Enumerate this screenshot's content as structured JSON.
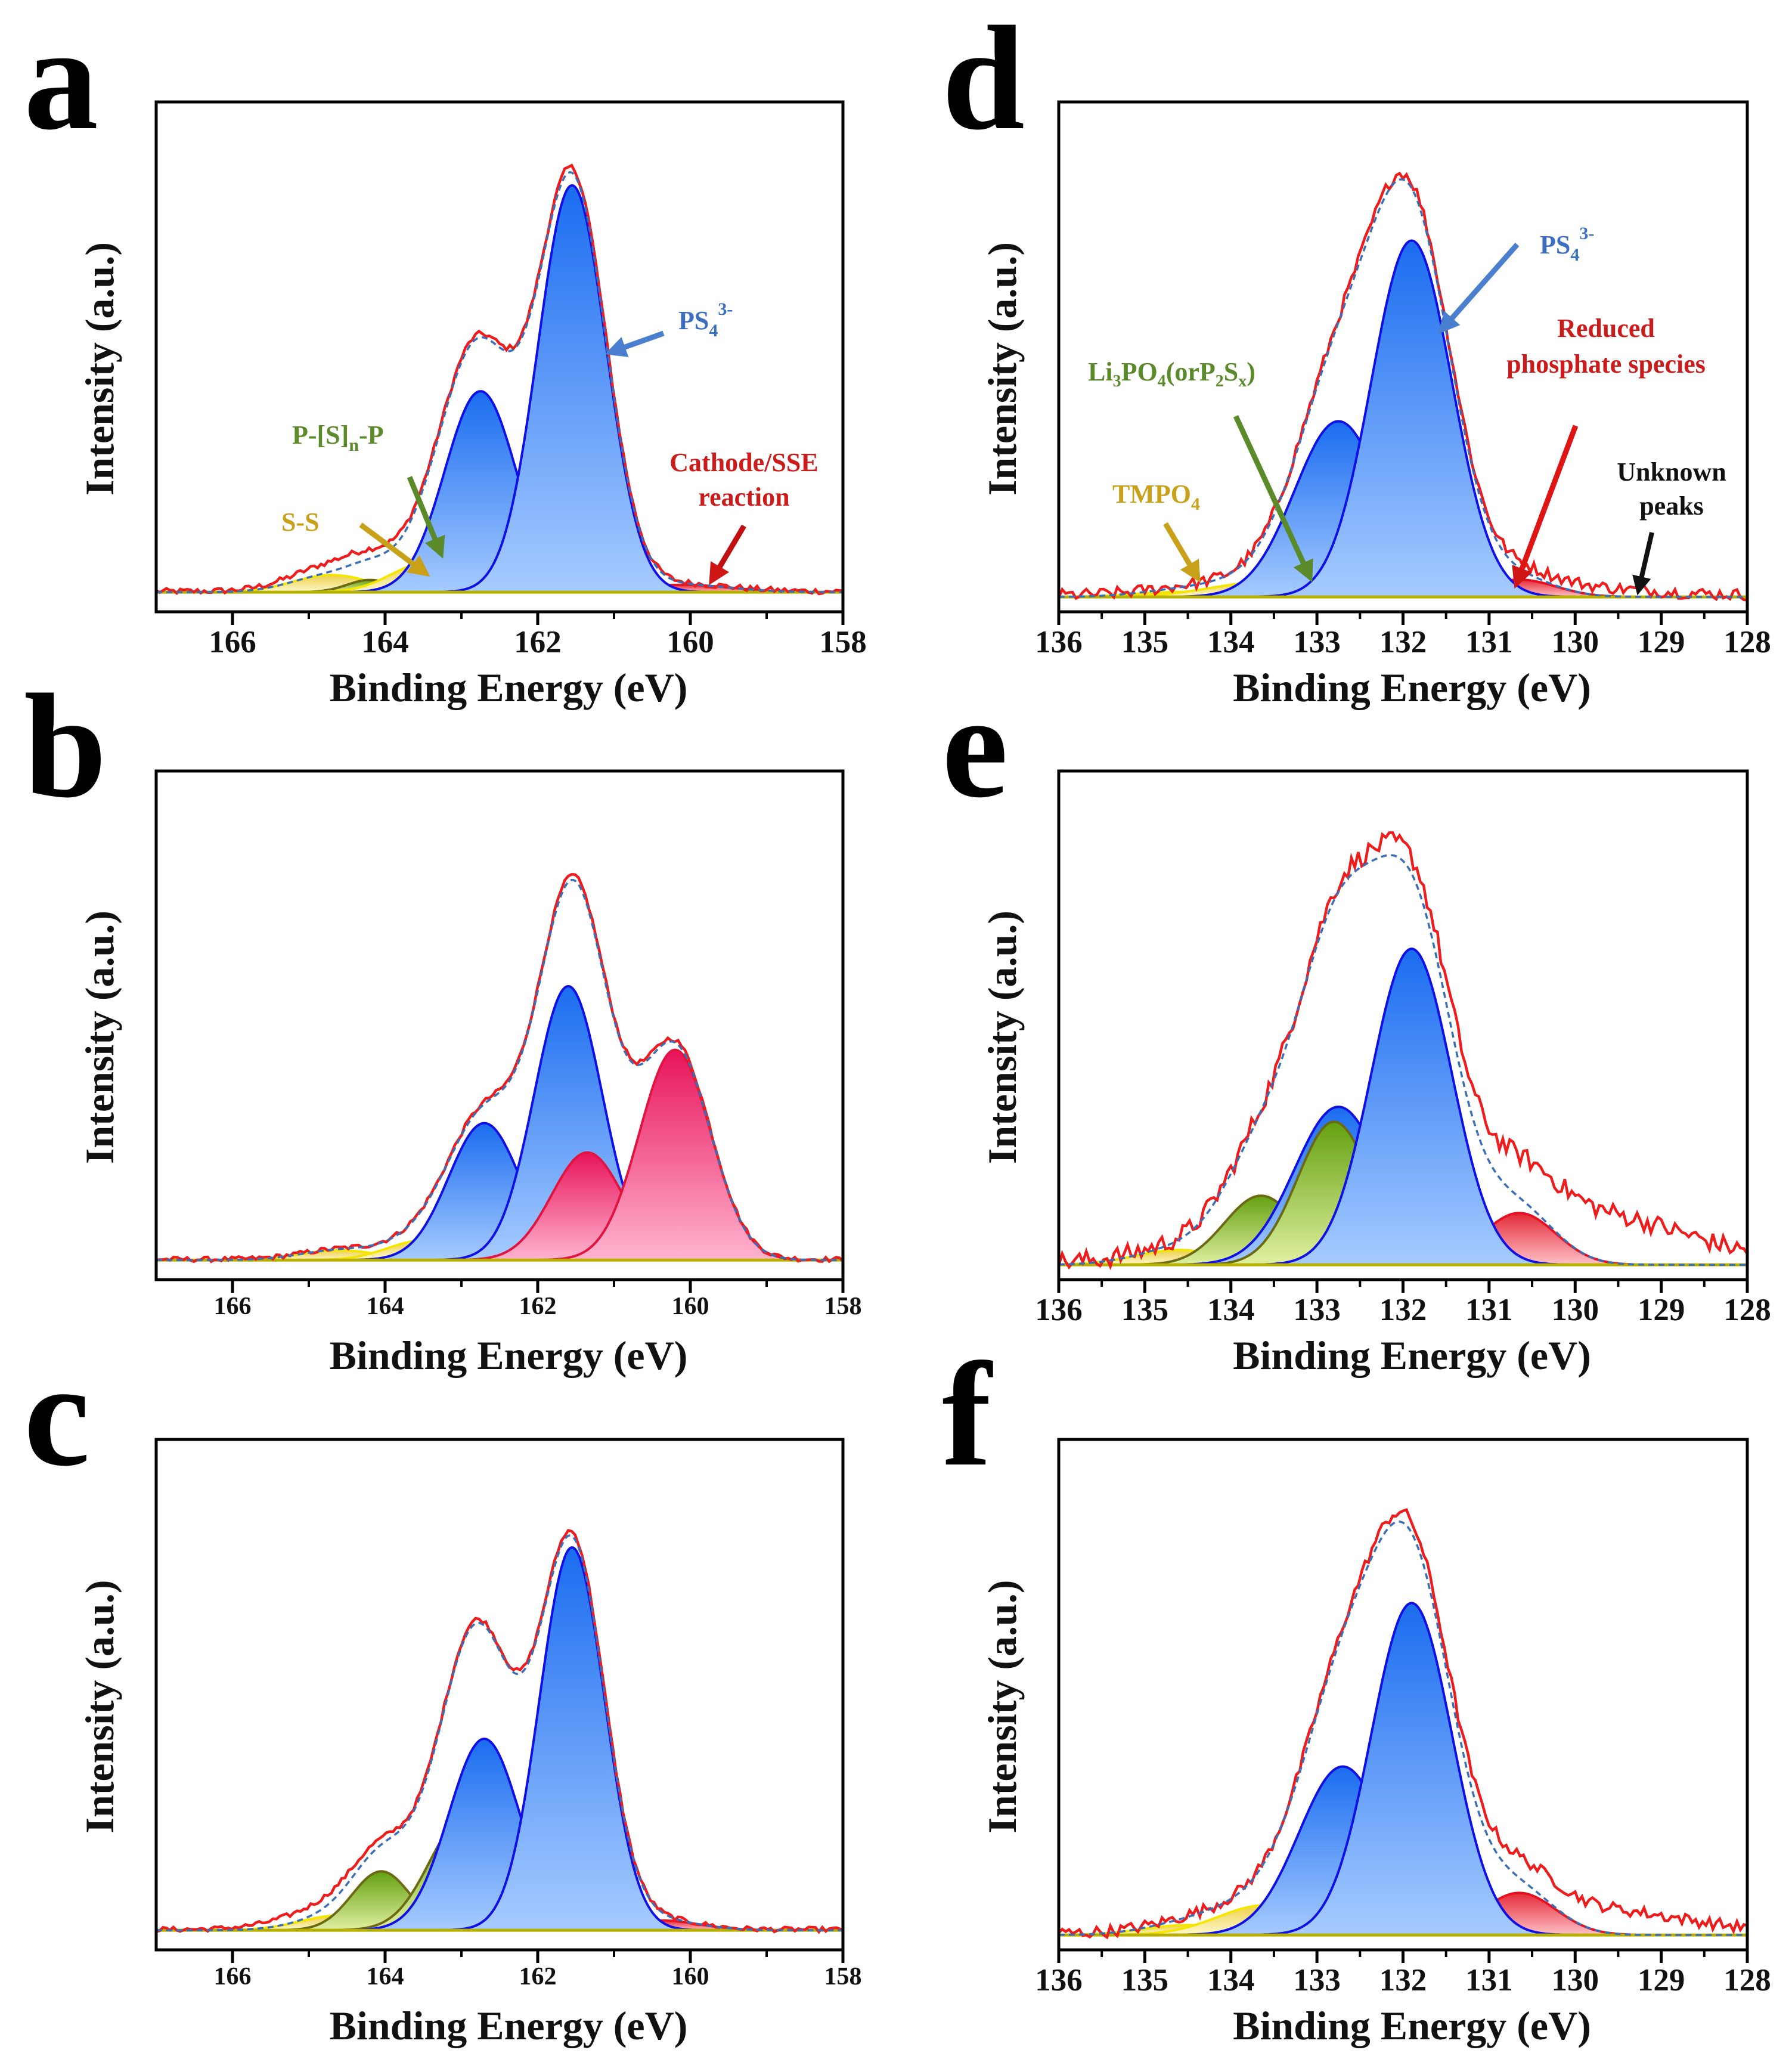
{
  "figure": {
    "panel_letters": [
      "a",
      "b",
      "c",
      "d",
      "e",
      "f"
    ],
    "annotations": {
      "a_ps4": {
        "base": "PS",
        "sub": "4",
        "sup": "3-"
      },
      "a_psnp": {
        "p1": "P-[S]",
        "sub": "n",
        "p2": "-P"
      },
      "a_ss": "S-S",
      "a_cathode_line1": "Cathode/SSE",
      "a_cathode_line2": "reaction",
      "d_ps4": {
        "base": "PS",
        "sub": "4",
        "sup": "3-"
      },
      "d_reduced_line1": "Reduced",
      "d_reduced_line2": "phosphate species",
      "d_unknown_line1": "Unknown",
      "d_unknown_line2": "peaks",
      "d_li3po4": {
        "p1": "Li",
        "s1": "3",
        "p2": "PO",
        "s2": "4",
        "p3": "(orP",
        "s3": "2",
        "p4": "S",
        "s4": "x",
        "p5": ")"
      },
      "d_tmpo4": {
        "base": "TMPO",
        "sub": "4"
      }
    },
    "colors": {
      "blue": "#2a78f2",
      "pink": "#ea1e62",
      "green": "#7aae18",
      "yellow": "#f2dc5a",
      "red": "#e8333c",
      "raw": "#ee1c1c",
      "fit": "#3a6fb8"
    }
  },
  "chart_data": [
    {
      "panel": "a",
      "type": "area",
      "xlabel": "Binding Energy (eV)",
      "ylabel": "Intensity (a.u.)",
      "xlim": [
        167,
        158
      ],
      "xticks": [
        166,
        164,
        162,
        160,
        158
      ],
      "ylim": [
        -0.04,
        1
      ],
      "noise": 0.006,
      "raw_extra": [
        {
          "center": 164.5,
          "amplitude": 0.02,
          "fwhm": 1.5
        }
      ],
      "components": [
        {
          "name": "S-S",
          "center": 164.7,
          "amplitude": 0.035,
          "fwhm": 1.2,
          "color": "yellow"
        },
        {
          "name": "P-[S]n-P",
          "center": 164.2,
          "amplitude": 0.025,
          "fwhm": 0.7,
          "color": "green"
        },
        {
          "name": "S-S",
          "center": 163.45,
          "amplitude": 0.06,
          "fwhm": 1.1,
          "color": "yellow"
        },
        {
          "name": "P-[S]n-P",
          "center": 162.95,
          "amplitude": 0.07,
          "fwhm": 1.1,
          "color": "green"
        },
        {
          "name": "Cathode/SSE reaction",
          "center": 161.9,
          "amplitude": 0.01,
          "fwhm": 1.5,
          "color": "red"
        },
        {
          "name": "Cathode/SSE reaction",
          "center": 160.1,
          "amplitude": 0.015,
          "fwhm": 1.5,
          "color": "red"
        },
        {
          "name": "PS4 3- (2p1/2)",
          "center": 162.75,
          "amplitude": 0.41,
          "fwhm": 1.1,
          "color": "blue"
        },
        {
          "name": "PS4 3- (2p3/2)",
          "center": 161.55,
          "amplitude": 0.83,
          "fwhm": 1.05,
          "color": "blue"
        }
      ]
    },
    {
      "panel": "b",
      "type": "area",
      "xlabel": "Binding Energy (eV)",
      "ylabel": "Intensity (a.u.)",
      "xlim": [
        167,
        158
      ],
      "xticks": [
        166,
        164,
        162,
        160,
        158
      ],
      "ylim": [
        -0.04,
        1
      ],
      "noise": 0.005,
      "raw_extra": [],
      "components": [
        {
          "name": "S-S",
          "center": 164.6,
          "amplitude": 0.02,
          "fwhm": 1.2,
          "color": "yellow"
        },
        {
          "name": "S-S",
          "center": 163.5,
          "amplitude": 0.04,
          "fwhm": 1.1,
          "color": "yellow"
        },
        {
          "name": "PS4 3- (2p1/2)",
          "center": 162.7,
          "amplitude": 0.28,
          "fwhm": 1.1,
          "color": "blue"
        },
        {
          "name": "PS4 3- (2p3/2)",
          "center": 161.6,
          "amplitude": 0.56,
          "fwhm": 1.05,
          "color": "blue"
        },
        {
          "name": "Cathode/SSE reaction",
          "center": 161.35,
          "amplitude": 0.22,
          "fwhm": 1.1,
          "color": "pink"
        },
        {
          "name": "Cathode/SSE reaction",
          "center": 160.2,
          "amplitude": 0.43,
          "fwhm": 1.1,
          "color": "pink"
        }
      ]
    },
    {
      "panel": "c",
      "type": "area",
      "xlabel": "Binding Energy (eV)",
      "ylabel": "Intensity (a.u.)",
      "xlim": [
        167,
        158
      ],
      "xticks": [
        166,
        164,
        162,
        160,
        158
      ],
      "ylim": [
        -0.04,
        1
      ],
      "noise": 0.005,
      "raw_extra": [
        {
          "center": 164.8,
          "amplitude": 0.02,
          "fwhm": 1.5
        }
      ],
      "components": [
        {
          "name": "S-S",
          "center": 164.6,
          "amplitude": 0.03,
          "fwhm": 1.2,
          "color": "yellow"
        },
        {
          "name": "S-S",
          "center": 163.45,
          "amplitude": 0.04,
          "fwhm": 1.1,
          "color": "yellow"
        },
        {
          "name": "P-[S]n-P",
          "center": 164.05,
          "amplitude": 0.12,
          "fwhm": 0.9,
          "color": "green"
        },
        {
          "name": "P-[S]n-P",
          "center": 162.95,
          "amplitude": 0.23,
          "fwhm": 1.1,
          "color": "green"
        },
        {
          "name": "Cathode/SSE reaction",
          "center": 160.4,
          "amplitude": 0.02,
          "fwhm": 1.2,
          "color": "red"
        },
        {
          "name": "PS4 3- (2p1/2)",
          "center": 162.7,
          "amplitude": 0.39,
          "fwhm": 1.1,
          "color": "blue"
        },
        {
          "name": "PS4 3- (2p3/2)",
          "center": 161.55,
          "amplitude": 0.78,
          "fwhm": 1.0,
          "color": "blue"
        }
      ]
    },
    {
      "panel": "d",
      "type": "area",
      "xlabel": "Binding Energy (eV)",
      "ylabel": "Intensity (a.u.)",
      "xlim": [
        136,
        128
      ],
      "xticks": [
        136,
        135,
        134,
        133,
        132,
        131,
        130,
        129,
        128
      ],
      "ylim": [
        -0.03,
        1
      ],
      "noise": 0.012,
      "raw_extra": [
        {
          "center": 130.0,
          "amplitude": 0.015,
          "fwhm": 2.0
        }
      ],
      "components": [
        {
          "name": "TMPO4",
          "center": 134.6,
          "amplitude": 0.01,
          "fwhm": 1.2,
          "color": "yellow"
        },
        {
          "name": "TMPO4",
          "center": 133.6,
          "amplitude": 0.03,
          "fwhm": 1.5,
          "color": "yellow"
        },
        {
          "name": "Li3PO4 (or P2Sx)",
          "center": 132.8,
          "amplitude": 0.05,
          "fwhm": 1.0,
          "color": "green"
        },
        {
          "name": "Reduced phosphate species",
          "center": 131.5,
          "amplitude": 0.015,
          "fwhm": 1.2,
          "color": "red"
        },
        {
          "name": "Reduced phosphate species",
          "center": 130.65,
          "amplitude": 0.035,
          "fwhm": 1.0,
          "color": "red"
        },
        {
          "name": "PS4 3- (2p1/2)",
          "center": 132.75,
          "amplitude": 0.355,
          "fwhm": 1.2,
          "color": "blue"
        },
        {
          "name": "PS4 3- (2p3/2)",
          "center": 131.9,
          "amplitude": 0.72,
          "fwhm": 1.1,
          "color": "blue"
        }
      ]
    },
    {
      "panel": "e",
      "type": "area",
      "xlabel": "Binding Energy (eV)",
      "ylabel": "Intensity (a.u.)",
      "xlim": [
        136,
        128
      ],
      "xticks": [
        136,
        135,
        134,
        133,
        132,
        131,
        130,
        129,
        128
      ],
      "ylim": [
        -0.03,
        1
      ],
      "noise": 0.02,
      "raw_extra": [
        {
          "center": 129.9,
          "amplitude": 0.1,
          "fwhm": 2.6
        }
      ],
      "components": [
        {
          "name": "TMPO4",
          "center": 134.6,
          "amplitude": 0.03,
          "fwhm": 1.2,
          "color": "yellow"
        },
        {
          "name": "TMPO4",
          "center": 133.7,
          "amplitude": 0.06,
          "fwhm": 1.1,
          "color": "yellow"
        },
        {
          "name": "Li3PO4 (or P2Sx)",
          "center": 133.65,
          "amplitude": 0.14,
          "fwhm": 1.0,
          "color": "green"
        },
        {
          "name": "Reduced phosphate species",
          "center": 131.5,
          "amplitude": 0.055,
          "fwhm": 1.2,
          "color": "red"
        },
        {
          "name": "Reduced phosphate species",
          "center": 130.65,
          "amplitude": 0.105,
          "fwhm": 1.0,
          "color": "red"
        },
        {
          "name": "PS4 3- (2p1/2)",
          "center": 132.75,
          "amplitude": 0.32,
          "fwhm": 1.2,
          "color": "blue"
        },
        {
          "name": "Li3PO4 (or P2Sx)",
          "center": 132.8,
          "amplitude": 0.29,
          "fwhm": 1.0,
          "color": "green"
        },
        {
          "name": "PS4 3- (2p3/2)",
          "center": 131.9,
          "amplitude": 0.64,
          "fwhm": 1.1,
          "color": "blue"
        }
      ]
    },
    {
      "panel": "f",
      "type": "area",
      "xlabel": "Binding Energy (eV)",
      "ylabel": "Intensity (a.u.)",
      "xlim": [
        136,
        128
      ],
      "xticks": [
        136,
        135,
        134,
        133,
        132,
        131,
        130,
        129,
        128
      ],
      "ylim": [
        -0.03,
        1
      ],
      "noise": 0.012,
      "raw_extra": [
        {
          "center": 129.9,
          "amplitude": 0.05,
          "fwhm": 2.6
        }
      ],
      "components": [
        {
          "name": "TMPO4",
          "center": 134.5,
          "amplitude": 0.02,
          "fwhm": 1.2,
          "color": "yellow"
        },
        {
          "name": "TMPO4",
          "center": 133.6,
          "amplitude": 0.06,
          "fwhm": 1.3,
          "color": "yellow"
        },
        {
          "name": "Li3PO4 (or P2Sx)",
          "center": 132.75,
          "amplitude": 0.1,
          "fwhm": 1.0,
          "color": "green"
        },
        {
          "name": "Reduced phosphate species",
          "center": 131.45,
          "amplitude": 0.04,
          "fwhm": 1.2,
          "color": "red"
        },
        {
          "name": "Reduced phosphate species",
          "center": 130.65,
          "amplitude": 0.085,
          "fwhm": 1.0,
          "color": "red"
        },
        {
          "name": "PS4 3- (2p1/2)",
          "center": 132.7,
          "amplitude": 0.34,
          "fwhm": 1.2,
          "color": "blue"
        },
        {
          "name": "PS4 3- (2p3/2)",
          "center": 131.9,
          "amplitude": 0.67,
          "fwhm": 1.1,
          "color": "blue"
        }
      ]
    }
  ]
}
